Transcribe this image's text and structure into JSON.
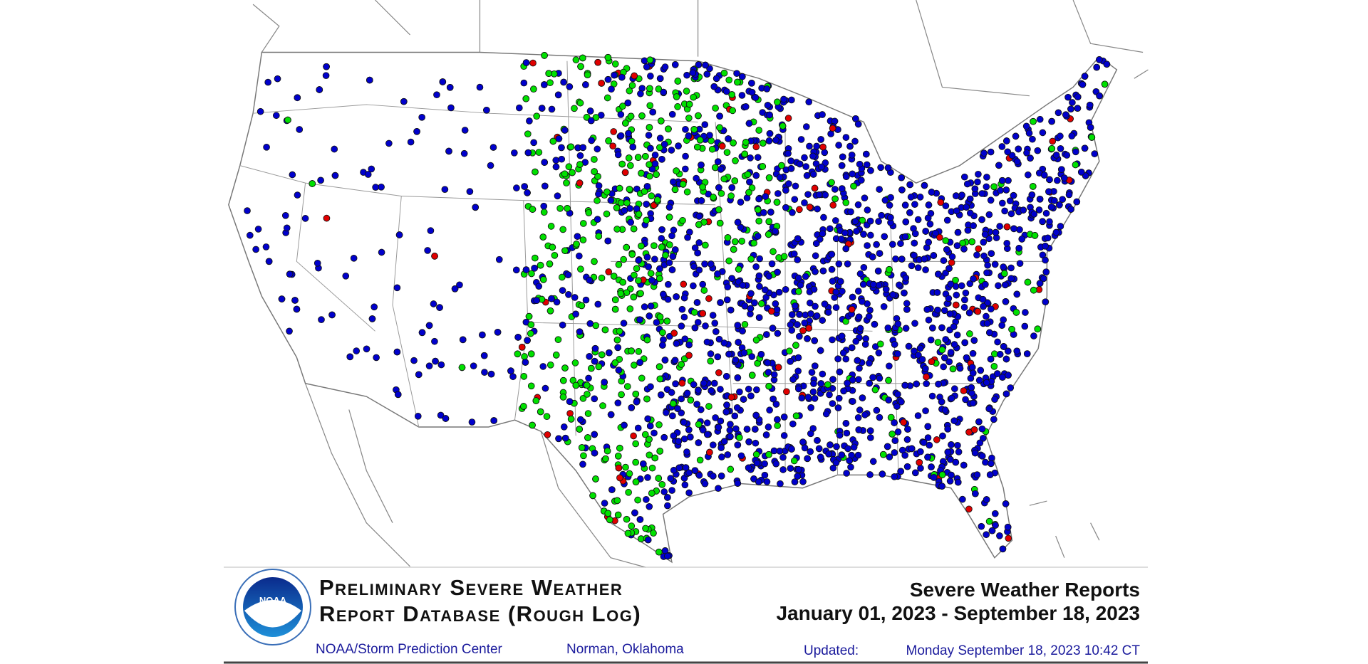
{
  "header": {
    "title_line1": "Preliminary Severe Weather",
    "title_line2": "Report Database (Rough Log)",
    "organization": "NOAA/Storm Prediction Center",
    "location": "Norman, Oklahoma",
    "logo_label": "NOAA"
  },
  "summary": {
    "title": "Severe Weather Reports",
    "date_range": "January 01, 2023 - September 18, 2023",
    "updated_label": "Updated:",
    "updated_time": "Monday September 18, 2023 10:42 CT"
  }
}
